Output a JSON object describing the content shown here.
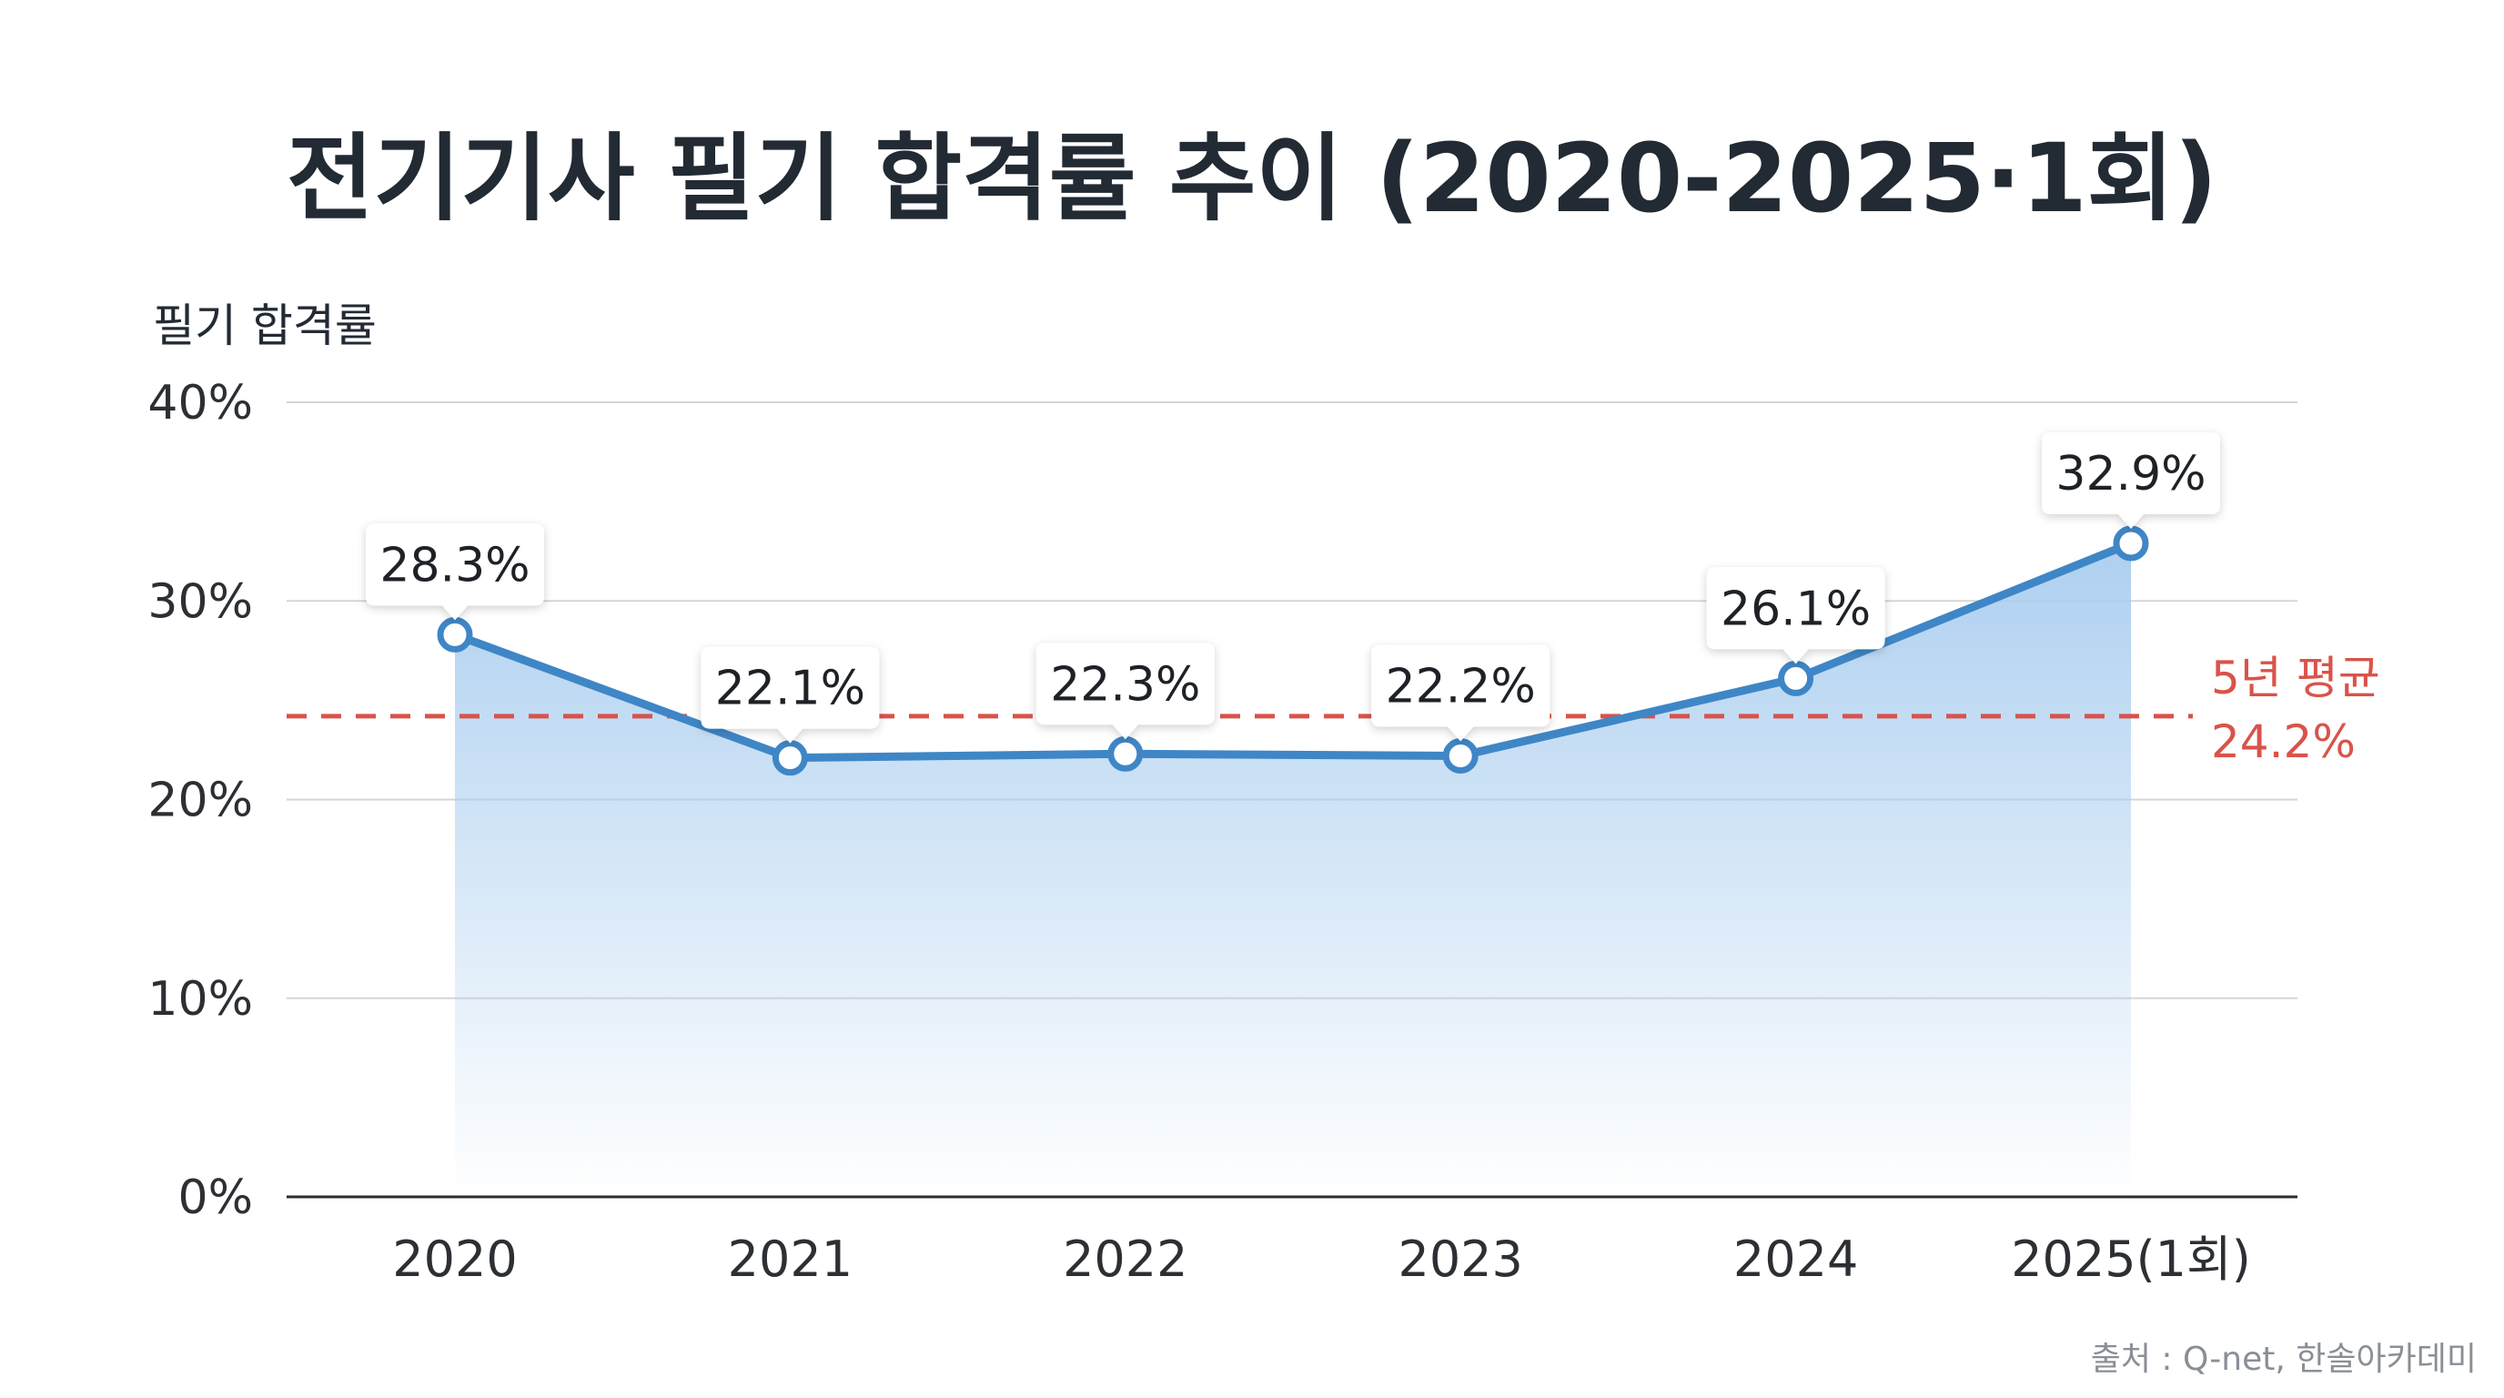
{
  "chart_data": {
    "type": "line",
    "title": "전기기사 필기 합격률 추이 (2020-2025·1회)",
    "ylabel": "필기 합격률",
    "xlabel": "",
    "categories": [
      "2020",
      "2021",
      "2022",
      "2023",
      "2024",
      "2025(1회)"
    ],
    "series": [
      {
        "values": [
          28.3,
          22.1,
          22.3,
          22.2,
          26.1,
          32.9
        ],
        "labels": [
          "28.3%",
          "22.1%",
          "22.3%",
          "22.2%",
          "26.1%",
          "32.9%"
        ],
        "color": "#3f86c6"
      }
    ],
    "ylim": [
      0,
      40
    ],
    "yticks": [
      {
        "value": 0,
        "label": "0%"
      },
      {
        "value": 10,
        "label": "10%"
      },
      {
        "value": 20,
        "label": "20%"
      },
      {
        "value": 30,
        "label": "30%"
      },
      {
        "value": 40,
        "label": "40%"
      }
    ],
    "reference_line": {
      "value": 24.2,
      "label_line1": "5년 평균",
      "label_line2": "24.2%",
      "color": "#d9534a",
      "style": "dashed"
    },
    "area_fill": true,
    "grid": true,
    "source": "출처 : Q-net, 한솔아카데미"
  }
}
